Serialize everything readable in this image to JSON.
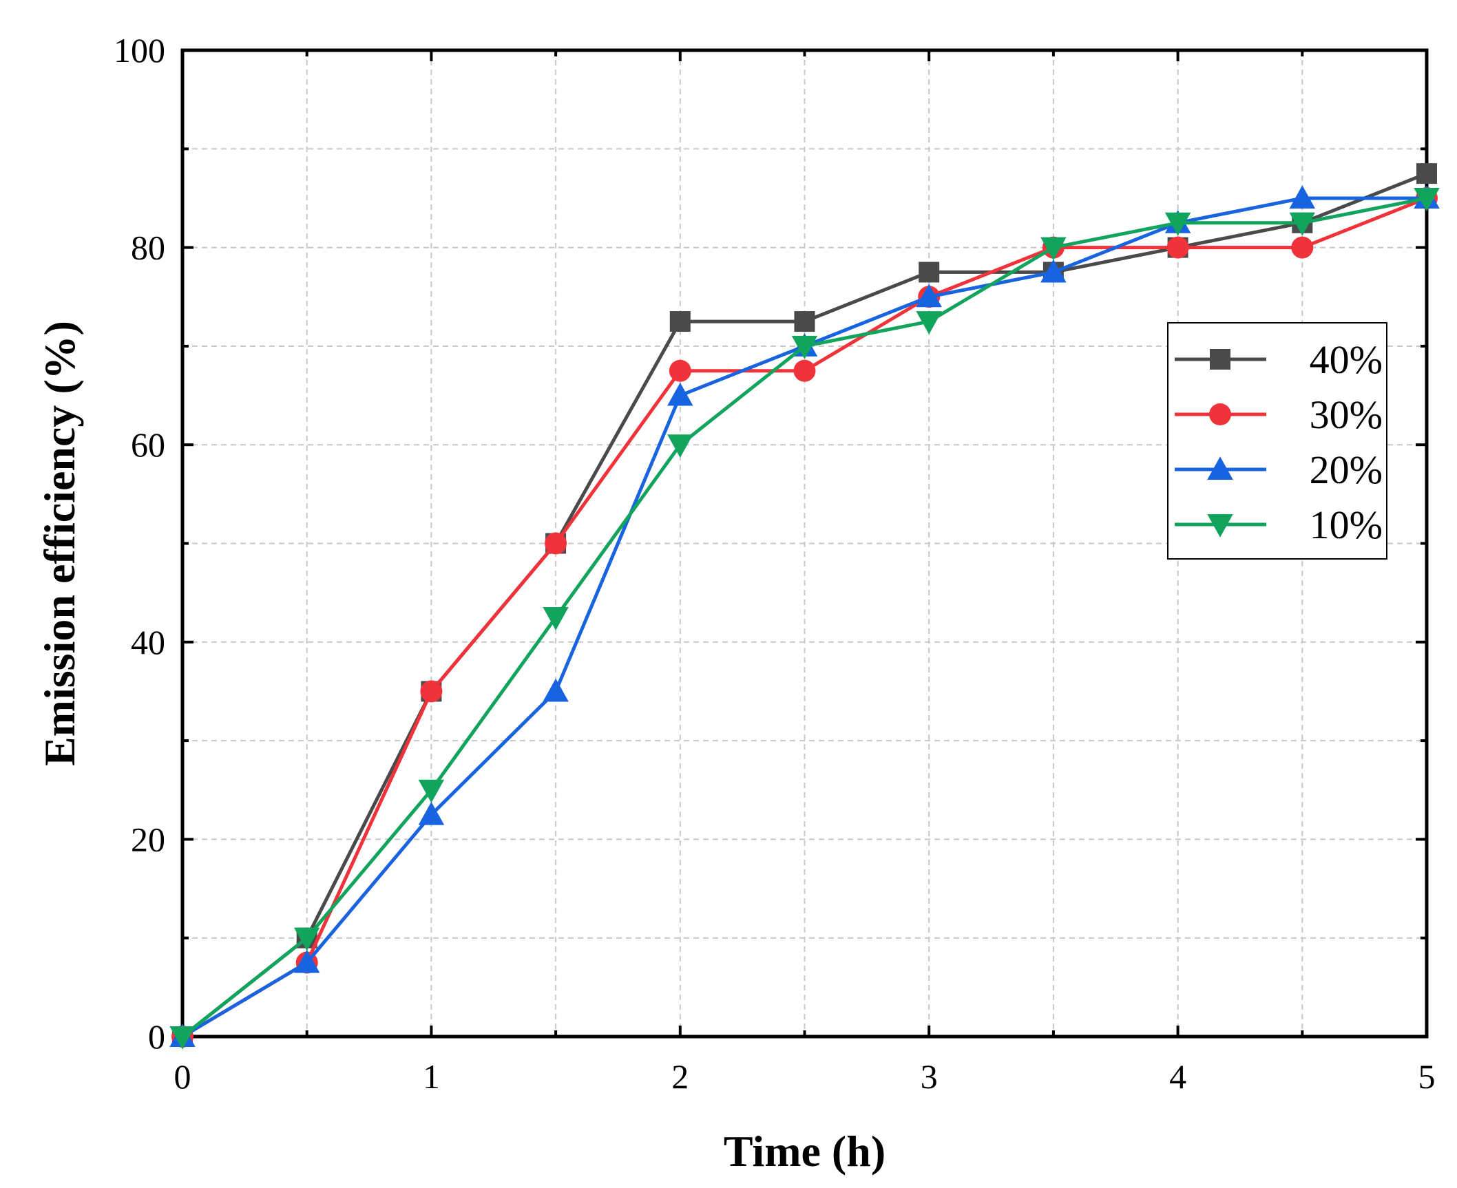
{
  "chart_data": {
    "type": "line",
    "xlabel": "Time (h)",
    "ylabel": "Emission efficiency (%)",
    "xlim": [
      0,
      5
    ],
    "ylim": [
      0,
      100
    ],
    "xticks": [
      0,
      1,
      2,
      3,
      4,
      5
    ],
    "yticks": [
      0,
      20,
      40,
      60,
      80,
      100
    ],
    "xticks_minor": [
      0.5,
      1.5,
      2.5,
      3.5,
      4.5
    ],
    "yticks_minor": [
      10,
      30,
      50,
      70,
      90
    ],
    "grid": true,
    "legend_position": "right",
    "x": [
      0,
      0.5,
      1,
      1.5,
      2,
      2.5,
      3,
      3.5,
      4,
      4.5,
      5
    ],
    "series": [
      {
        "name": "40%",
        "color": "#4a4a4a",
        "marker": "square",
        "values": [
          0,
          10,
          35,
          50,
          72.5,
          72.5,
          77.5,
          77.5,
          80,
          82.5,
          87.5
        ]
      },
      {
        "name": "30%",
        "color": "#f0333a",
        "marker": "circle",
        "values": [
          0,
          7.5,
          35,
          50,
          67.5,
          67.5,
          75,
          80,
          80,
          80,
          85
        ]
      },
      {
        "name": "20%",
        "color": "#1763e0",
        "marker": "triangle-up",
        "values": [
          0,
          7.5,
          22.5,
          35,
          65,
          70,
          75,
          77.5,
          82.5,
          85,
          85
        ]
      },
      {
        "name": "10%",
        "color": "#12a35c",
        "marker": "triangle-down",
        "values": [
          0,
          10,
          25,
          42.5,
          60,
          70,
          72.5,
          80,
          82.5,
          82.5,
          85
        ]
      }
    ]
  }
}
